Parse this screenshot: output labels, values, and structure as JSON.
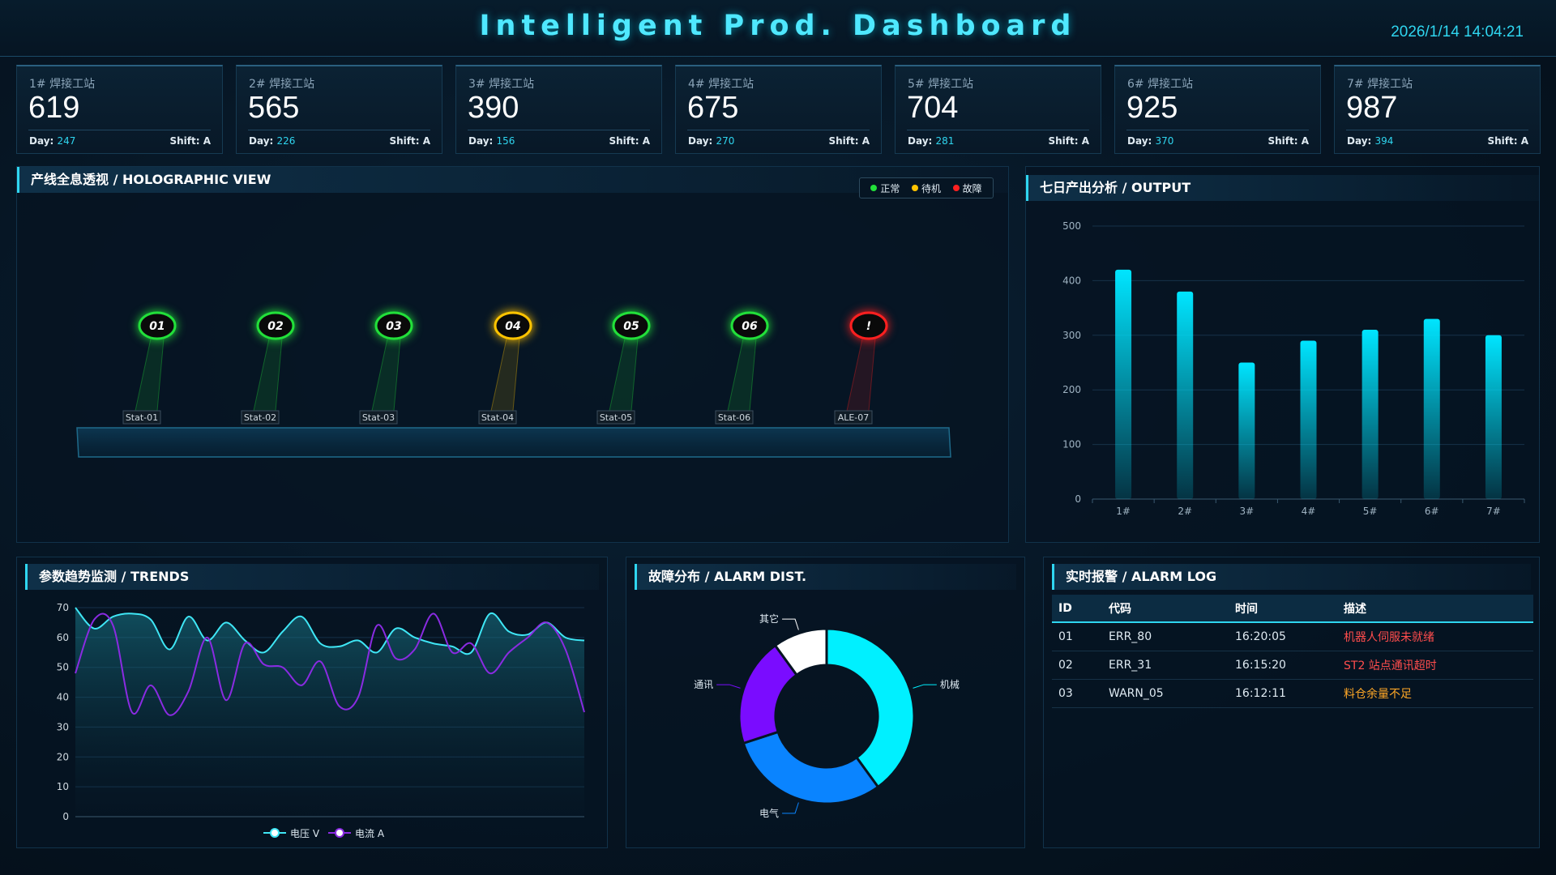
{
  "header": {
    "title": "Intelligent Prod. Dashboard",
    "datetime": "2026/1/14 14:04:21"
  },
  "day_label": "Day:",
  "stations": [
    {
      "name": "1# 焊接工站",
      "value": "619",
      "day": "247",
      "shift": "Shift: A"
    },
    {
      "name": "2# 焊接工站",
      "value": "565",
      "day": "226",
      "shift": "Shift: A"
    },
    {
      "name": "3# 焊接工站",
      "value": "390",
      "day": "156",
      "shift": "Shift: A"
    },
    {
      "name": "4# 焊接工站",
      "value": "675",
      "day": "270",
      "shift": "Shift: A"
    },
    {
      "name": "5# 焊接工站",
      "value": "704",
      "day": "281",
      "shift": "Shift: A"
    },
    {
      "name": "6# 焊接工站",
      "value": "925",
      "day": "370",
      "shift": "Shift: A"
    },
    {
      "name": "7# 焊接工站",
      "value": "987",
      "day": "394",
      "shift": "Shift: A"
    }
  ],
  "holo": {
    "title": "产线全息透视 / HOLOGRAPHIC VIEW",
    "legend": [
      {
        "label": "正常",
        "color": "#22e03a"
      },
      {
        "label": "待机",
        "color": "#ffc400"
      },
      {
        "label": "故障",
        "color": "#ff2020"
      }
    ],
    "nodes": [
      {
        "badge": "01",
        "label": "Stat-01",
        "status": "normal"
      },
      {
        "badge": "02",
        "label": "Stat-02",
        "status": "normal"
      },
      {
        "badge": "03",
        "label": "Stat-03",
        "status": "normal"
      },
      {
        "badge": "04",
        "label": "Stat-04",
        "status": "standby"
      },
      {
        "badge": "05",
        "label": "Stat-05",
        "status": "normal"
      },
      {
        "badge": "06",
        "label": "Stat-06",
        "status": "normal"
      },
      {
        "badge": "!",
        "label": "ALE-07",
        "status": "fault"
      }
    ],
    "status_colors": {
      "normal": "#22e03a",
      "standby": "#ffc400",
      "fault": "#ff2020"
    }
  },
  "output": {
    "title": "七日产出分析 / OUTPUT"
  },
  "trends": {
    "title": "参数趋势监测 / TRENDS"
  },
  "alarm_dist": {
    "title": "故障分布 / ALARM DIST."
  },
  "alarm_log": {
    "title": "实时报警 / ALARM LOG",
    "columns": [
      "ID",
      "代码",
      "时间",
      "描述"
    ],
    "rows": [
      {
        "id": "01",
        "code": "ERR_80",
        "time": "16:20:05",
        "desc": "机器人伺服未就绪",
        "level": "error"
      },
      {
        "id": "02",
        "code": "ERR_31",
        "time": "16:15:20",
        "desc": "ST2 站点通讯超时",
        "level": "error"
      },
      {
        "id": "03",
        "code": "WARN_05",
        "time": "16:12:11",
        "desc": "料仓余量不足",
        "level": "warn"
      }
    ],
    "level_colors": {
      "error": "#ff4d4d",
      "warn": "#ffa726"
    }
  },
  "chart_data": [
    {
      "type": "bar",
      "title": "七日产出分析 / OUTPUT",
      "categories": [
        "1#",
        "2#",
        "3#",
        "4#",
        "5#",
        "6#",
        "7#"
      ],
      "values": [
        420,
        380,
        250,
        290,
        310,
        330,
        300
      ],
      "ylim": [
        0,
        500
      ],
      "yticks": [
        0,
        100,
        200,
        300,
        400,
        500
      ],
      "color": "#00e5ff"
    },
    {
      "type": "line",
      "title": "参数趋势监测 / TRENDS",
      "ylim": [
        0,
        70
      ],
      "yticks": [
        0,
        10,
        20,
        30,
        40,
        50,
        60,
        70
      ],
      "series": [
        {
          "name": "电压 V",
          "color": "#3fe6f5",
          "area": true,
          "values": [
            70,
            63,
            67,
            68,
            66,
            56,
            67,
            59,
            65,
            59,
            55,
            62,
            67,
            58,
            57,
            59,
            55,
            63,
            60,
            58,
            57,
            55,
            68,
            62,
            61,
            65,
            60,
            59
          ]
        },
        {
          "name": "电流 A",
          "color": "#8a2be2",
          "area": false,
          "values": [
            48,
            66,
            64,
            35,
            44,
            34,
            42,
            60,
            39,
            58,
            51,
            50,
            44,
            52,
            37,
            40,
            64,
            53,
            56,
            68,
            55,
            58,
            48,
            55,
            60,
            65,
            56,
            35
          ]
        }
      ]
    },
    {
      "type": "pie",
      "title": "故障分布 / ALARM DIST.",
      "slices": [
        {
          "label": "机械",
          "value": 40,
          "color": "#00f0ff"
        },
        {
          "label": "电气",
          "value": 30,
          "color": "#0a84ff"
        },
        {
          "label": "通讯",
          "value": 20,
          "color": "#7a0cff"
        },
        {
          "label": "其它",
          "value": 10,
          "color": "#ffffff"
        }
      ]
    }
  ]
}
